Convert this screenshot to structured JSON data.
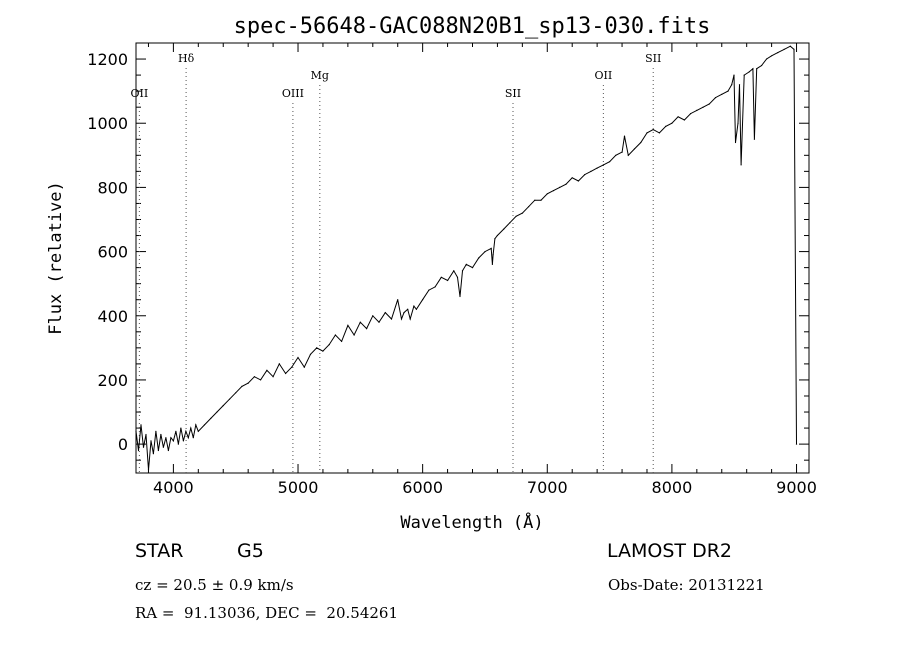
{
  "chart_data": {
    "type": "line",
    "title": "spec-56648-GAC088N20B1_sp13-030.fits",
    "xlabel": "Wavelength (Å)",
    "ylabel": "Flux (relative)",
    "xlim": [
      3700,
      9100
    ],
    "ylim": [
      -90,
      1250
    ],
    "xticks": [
      4000,
      5000,
      6000,
      7000,
      8000,
      9000
    ],
    "yticks": [
      0,
      200,
      400,
      600,
      800,
      1000,
      1200
    ],
    "grid": false,
    "series": [
      {
        "x": [
          3700,
          3720,
          3740,
          3760,
          3780,
          3800,
          3820,
          3840,
          3860,
          3880,
          3900,
          3920,
          3940,
          3960,
          3980,
          4000,
          4020,
          4040,
          4060,
          4080,
          4100,
          4120,
          4140,
          4160,
          4180,
          4200,
          4250,
          4300,
          4350,
          4400,
          4450,
          4500,
          4550,
          4600,
          4650,
          4700,
          4750,
          4800,
          4850,
          4900,
          4950,
          5000,
          5050,
          5100,
          5150,
          5200,
          5250,
          5300,
          5350,
          5400,
          5450,
          5500,
          5550,
          5600,
          5650,
          5700,
          5750,
          5800,
          5830,
          5850,
          5880,
          5900,
          5930,
          5950,
          6000,
          6050,
          6100,
          6150,
          6200,
          6250,
          6280,
          6300,
          6320,
          6350,
          6400,
          6450,
          6500,
          6550,
          6560,
          6565,
          6580,
          6600,
          6650,
          6700,
          6750,
          6800,
          6850,
          6900,
          6950,
          7000,
          7050,
          7100,
          7150,
          7200,
          7250,
          7300,
          7350,
          7400,
          7450,
          7500,
          7550,
          7600,
          7620,
          7650,
          7700,
          7750,
          7800,
          7850,
          7900,
          7950,
          8000,
          8050,
          8100,
          8150,
          8200,
          8250,
          8300,
          8350,
          8400,
          8450,
          8480,
          8498,
          8510,
          8530,
          8542,
          8555,
          8580,
          8620,
          8650,
          8662,
          8680,
          8720,
          8760,
          8800,
          8850,
          8900,
          8950,
          8980,
          9000
        ],
        "values": [
          40,
          -20,
          60,
          -10,
          30,
          -80,
          10,
          -30,
          40,
          -20,
          30,
          -10,
          20,
          -20,
          20,
          10,
          40,
          0,
          50,
          10,
          40,
          20,
          50,
          20,
          60,
          40,
          60,
          80,
          100,
          120,
          140,
          160,
          180,
          190,
          210,
          200,
          230,
          210,
          250,
          220,
          240,
          270,
          240,
          280,
          300,
          290,
          310,
          340,
          320,
          370,
          340,
          380,
          360,
          400,
          380,
          410,
          390,
          450,
          390,
          410,
          420,
          390,
          430,
          420,
          450,
          480,
          490,
          520,
          510,
          540,
          520,
          460,
          540,
          560,
          550,
          580,
          600,
          610,
          560,
          590,
          640,
          650,
          670,
          690,
          710,
          720,
          740,
          760,
          760,
          780,
          790,
          800,
          810,
          830,
          820,
          840,
          850,
          860,
          870,
          880,
          900,
          910,
          960,
          900,
          920,
          940,
          970,
          980,
          970,
          990,
          1000,
          1020,
          1010,
          1030,
          1040,
          1050,
          1060,
          1080,
          1090,
          1100,
          1120,
          1150,
          940,
          1000,
          1120,
          870,
          1150,
          1160,
          1170,
          950,
          1170,
          1180,
          1200,
          1210,
          1220,
          1230,
          1240,
          1230,
          0
        ]
      }
    ],
    "line_markers": [
      {
        "label": "OII",
        "x": 3727,
        "row": "low"
      },
      {
        "label": "Hδ",
        "x": 4102,
        "row": "high"
      },
      {
        "label": "OIII",
        "x": 4959,
        "row": "low"
      },
      {
        "label": "Mg",
        "x": 5175,
        "row": "mid"
      },
      {
        "label": "SII",
        "x": 6725,
        "row": "low"
      },
      {
        "label": "OII",
        "x": 7450,
        "row": "mid"
      },
      {
        "label": "SII",
        "x": 7850,
        "row": "high"
      }
    ]
  },
  "info": {
    "class": "STAR",
    "subclass": "G5",
    "cz": "cz = 20.5 ± 0.9 km/s",
    "radec": "RA =  91.13036, DEC =  20.54261",
    "survey": "LAMOST DR2",
    "obsdate": "Obs-Date: 20131221"
  }
}
